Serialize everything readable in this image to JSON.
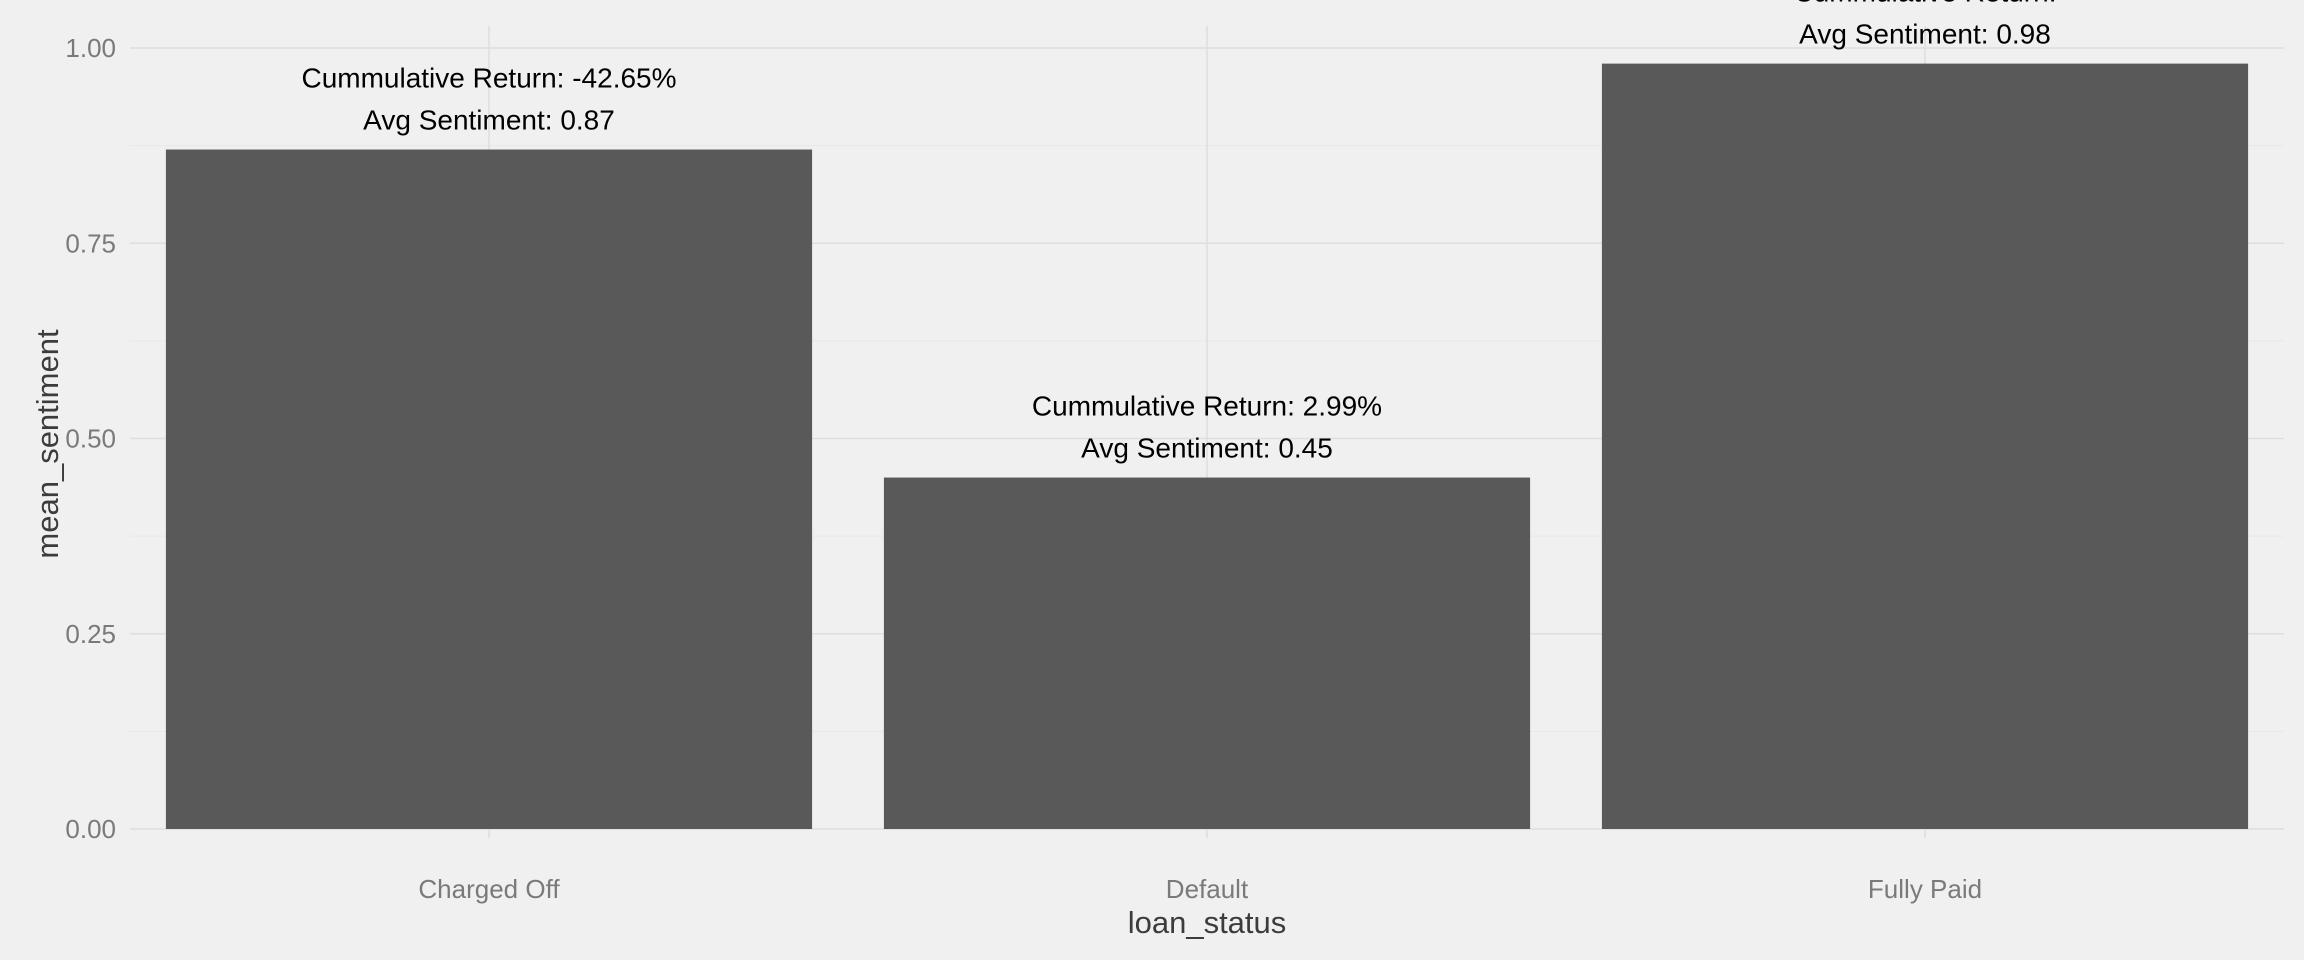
{
  "chart_data": {
    "type": "bar",
    "title": "",
    "xlabel": "loan_status",
    "ylabel": "mean_sentiment",
    "categories": [
      "Charged Off",
      "Default",
      "Fully Paid"
    ],
    "values": [
      0.87,
      0.45,
      0.98
    ],
    "annotations": [
      [
        "Cummulative Return: -42.65%",
        "Avg Sentiment: 0.87"
      ],
      [
        "Cummulative Return: 2.99%",
        "Avg Sentiment: 0.45"
      ],
      [
        "Cummulative Return: ",
        "Avg Sentiment: 0.98"
      ]
    ],
    "ylim": [
      0,
      1.0
    ],
    "yticks": [
      0,
      0.25,
      0.5,
      0.75,
      1.0
    ],
    "ytick_labels": [
      "0.00",
      "0.25",
      "0.50",
      "0.75",
      "1.00"
    ],
    "grid": true,
    "legend": "none",
    "colors": {
      "bar": "#595959",
      "background": "#f0f0f0",
      "grid_major": "#dedede",
      "grid_minor": "#e8e8e8",
      "tick_text": "#7a7a7a",
      "axis_title": "#3c3c3c",
      "annotation": "#000000"
    }
  }
}
